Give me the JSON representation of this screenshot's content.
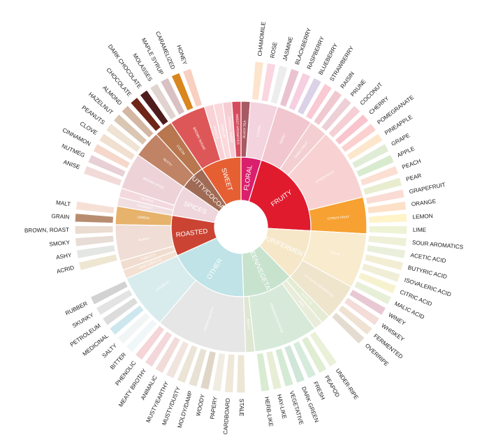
{
  "wheel": {
    "categories": [
      {
        "name": "FLORAL",
        "color": "#da1f6d",
        "subs": [
          {
            "name": "BLACK TEA",
            "color": "#a65a63",
            "items": []
          },
          {
            "name": "FLORAL",
            "color": "#f3d3de",
            "items": [
              {
                "name": "CHAMOMILE",
                "color": "#fde4cc"
              },
              {
                "name": "ROSE",
                "color": "#f9d6e0"
              },
              {
                "name": "JASMINE",
                "color": "#ededed"
              }
            ]
          }
        ]
      },
      {
        "name": "FRUITY",
        "color": "#e01b2e",
        "subs": [
          {
            "name": "BERRY",
            "color": "#f2c6cf",
            "items": [
              {
                "name": "BLACKBERRY",
                "color": "#eac3d1"
              },
              {
                "name": "RASPBERRY",
                "color": "#f6cfe0"
              },
              {
                "name": "BLUEBERRY",
                "color": "#dcd2e8"
              },
              {
                "name": "STRAWBERRY",
                "color": "#f9c9d4"
              }
            ]
          },
          {
            "name": "DRIED FRUIT",
            "color": "#f3cfd2",
            "items": [
              {
                "name": "RAISIN",
                "color": "#f0c9d0"
              },
              {
                "name": "PRUNE",
                "color": "#ecd0d6"
              }
            ]
          },
          {
            "name": "OTHER FRUIT",
            "color": "#f8d2d2",
            "items": [
              {
                "name": "COCONUT",
                "color": "#f4d0d5"
              },
              {
                "name": "CHERRY",
                "color": "#f9c4cd"
              },
              {
                "name": "POMEGRANATE",
                "color": "#fbd1d0"
              },
              {
                "name": "PINEAPPLE",
                "color": "#fde7cc"
              },
              {
                "name": "GRAPE",
                "color": "#e0ecd5"
              },
              {
                "name": "APPLE",
                "color": "#d8ebcf"
              },
              {
                "name": "PEACH",
                "color": "#fbdfd2"
              },
              {
                "name": "PEAR",
                "color": "#e9edd0"
              }
            ]
          },
          {
            "name": "CITRUS FRUIT",
            "color": "#f6a131",
            "items": [
              {
                "name": "GRAPEFRUIT",
                "color": "#fadcd4"
              },
              {
                "name": "ORANGE",
                "color": "#fde0c8"
              },
              {
                "name": "LEMON",
                "color": "#fff3c8"
              },
              {
                "name": "LIME",
                "color": "#eef3d6"
              }
            ]
          }
        ]
      },
      {
        "name": "SOUR/FERMENTED",
        "color": "#f5e7c8",
        "subs": [
          {
            "name": "SOUR",
            "color": "#f8ebce",
            "items": [
              {
                "name": "SOUR AROMATICS",
                "color": "#eef0d8"
              },
              {
                "name": "ACETIC ACID",
                "color": "#e9efdb"
              },
              {
                "name": "BUTYRIC ACID",
                "color": "#f3edd3"
              },
              {
                "name": "ISOVALERIC ACID",
                "color": "#f0eed6"
              },
              {
                "name": "CITRIC ACID",
                "color": "#f6f2d0"
              },
              {
                "name": "MALIC ACID",
                "color": "#e8efd7"
              }
            ]
          },
          {
            "name": "ALCOHOL/FERMENTED",
            "color": "#efe4cc",
            "items": [
              {
                "name": "WINEY",
                "color": "#e8c9d3"
              },
              {
                "name": "WHISKEY",
                "color": "#f4dcd8"
              },
              {
                "name": "FERMENTED",
                "color": "#efe2d2"
              },
              {
                "name": "OVERRIPE",
                "color": "#e4dcd0"
              }
            ]
          }
        ]
      },
      {
        "name": "GREEN/VEGETATIVE",
        "color": "#c7e2cd",
        "subs": [
          {
            "name": "OLIVE OIL",
            "color": "#e4ecd4",
            "items": []
          },
          {
            "name": "RAW",
            "color": "#e9ecd9",
            "items": []
          },
          {
            "name": "GREEN/VEGETATIVE",
            "color": "#d7ead9",
            "items": [
              {
                "name": "UNDER-RIPE",
                "color": "#eaf1d8"
              },
              {
                "name": "PEAPOD",
                "color": "#dfedd2"
              },
              {
                "name": "FRESH",
                "color": "#d6ebdc"
              },
              {
                "name": "DARK GREEN",
                "color": "#cfe6d9"
              },
              {
                "name": "VEGETATIVE",
                "color": "#d4ead4"
              },
              {
                "name": "HAY-LIKE",
                "color": "#e8eed6"
              },
              {
                "name": "HERB-LIKE",
                "color": "#d9ecd3"
              }
            ]
          },
          {
            "name": "BEANY",
            "color": "#dfe6d2",
            "items": []
          }
        ]
      },
      {
        "name": "OTHER",
        "color": "#bfe3e6",
        "subs": [
          {
            "name": "PAPERY/MUSTY",
            "color": "#e6e6e6",
            "items": [
              {
                "name": "STALE",
                "color": "#ece6d5"
              },
              {
                "name": "CARDBOARD",
                "color": "#efe7d8"
              },
              {
                "name": "PAPERY",
                "color": "#f1ece2"
              },
              {
                "name": "WOODY",
                "color": "#e0d6c8"
              },
              {
                "name": "MOLDY/DAMP",
                "color": "#e7e2d4"
              },
              {
                "name": "MUSTY/DUSTY",
                "color": "#ebe4d7"
              },
              {
                "name": "MUSTY/EARTHY",
                "color": "#f1e4df"
              },
              {
                "name": "ANIMALIC",
                "color": "#f2dcd9"
              },
              {
                "name": "MEATY BROTHY",
                "color": "#f4d7da"
              },
              {
                "name": "PHENOLIC",
                "color": "#f5d5d8"
              }
            ]
          },
          {
            "name": "CHEMICAL",
            "color": "#d8ecee",
            "items": [
              {
                "name": "BITTER",
                "color": "#eff7f8"
              },
              {
                "name": "SALTY",
                "color": "#f2f5f6"
              },
              {
                "name": "MEDICINAL",
                "color": "#cde7ee"
              },
              {
                "name": "PETROLEUM",
                "color": "#dcdcdc"
              },
              {
                "name": "SKUNKY",
                "color": "#e3e3e3"
              },
              {
                "name": "RUBBER",
                "color": "#d2d2d2"
              }
            ]
          }
        ]
      },
      {
        "name": "ROASTED",
        "color": "#cb4333",
        "subs": [
          {
            "name": "PIPE TOBACCO",
            "color": "#f3e0d2",
            "items": []
          },
          {
            "name": "TOBACCO",
            "color": "#f1ddcf",
            "items": []
          },
          {
            "name": "BURNT",
            "color": "#f0ddd5",
            "items": [
              {
                "name": "ACRID",
                "color": "#efe6d2"
              },
              {
                "name": "ASHY",
                "color": "#e4e6e4"
              },
              {
                "name": "SMOKY",
                "color": "#e8ddd6"
              },
              {
                "name": "BROWN, ROAST",
                "color": "#eadcd1"
              }
            ]
          },
          {
            "name": "CEREAL",
            "color": "#e6b26c",
            "items": [
              {
                "name": "GRAIN",
                "color": "#b88d6f"
              },
              {
                "name": "MALT",
                "color": "#f6e0d6"
              }
            ]
          }
        ]
      },
      {
        "name": "SPICES",
        "color": "#eed6dc",
        "subs": [
          {
            "name": "PUNGENT",
            "color": "#f0dee1",
            "items": []
          },
          {
            "name": "PEPPER",
            "color": "#f3d9dd",
            "items": []
          },
          {
            "name": "BROWN SPICE",
            "color": "#edd3d8",
            "items": [
              {
                "name": "ANISE",
                "color": "#f1dad8"
              },
              {
                "name": "NUTMEG",
                "color": "#e8d0d6"
              },
              {
                "name": "CINNAMON",
                "color": "#f6d7cc"
              },
              {
                "name": "CLOVE",
                "color": "#f1dfcf"
              }
            ]
          }
        ]
      },
      {
        "name": "NUTTY/COCOA",
        "color": "#9f6b55",
        "subs": [
          {
            "name": "NUTTY",
            "color": "#c08365",
            "items": [
              {
                "name": "PEANUTS",
                "color": "#efe3d4"
              },
              {
                "name": "HAZELNUT",
                "color": "#d9c7b4"
              },
              {
                "name": "ALMOND",
                "color": "#d3b7a3"
              }
            ]
          },
          {
            "name": "COCOA",
            "color": "#b8774f",
            "items": [
              {
                "name": "CHOCOLATE",
                "color": "#6e2617"
              },
              {
                "name": "DARK CHOCOLATE",
                "color": "#4f1c1c"
              }
            ]
          }
        ]
      },
      {
        "name": "SWEET",
        "color": "#e65f33",
        "subs": [
          {
            "name": "BROWN SUGAR",
            "color": "#dd5759",
            "items": [
              {
                "name": "MOLASSES",
                "color": "#e1d3cf"
              },
              {
                "name": "MAPLE SYRUP",
                "color": "#d8c0c3"
              },
              {
                "name": "CARAMELIZED",
                "color": "#d9861e"
              },
              {
                "name": "HONEY",
                "color": "#f8cfc0"
              }
            ]
          },
          {
            "name": "VANILLA",
            "color": "#f9d2d6",
            "items": []
          },
          {
            "name": "VANILLIN",
            "color": "#fbd8dc",
            "items": []
          },
          {
            "name": "OVERALL SWEET",
            "color": "#f7cdd4",
            "items": []
          },
          {
            "name": "SWEET AROMATICS",
            "color": "#d64c5e",
            "items": []
          }
        ]
      }
    ]
  }
}
